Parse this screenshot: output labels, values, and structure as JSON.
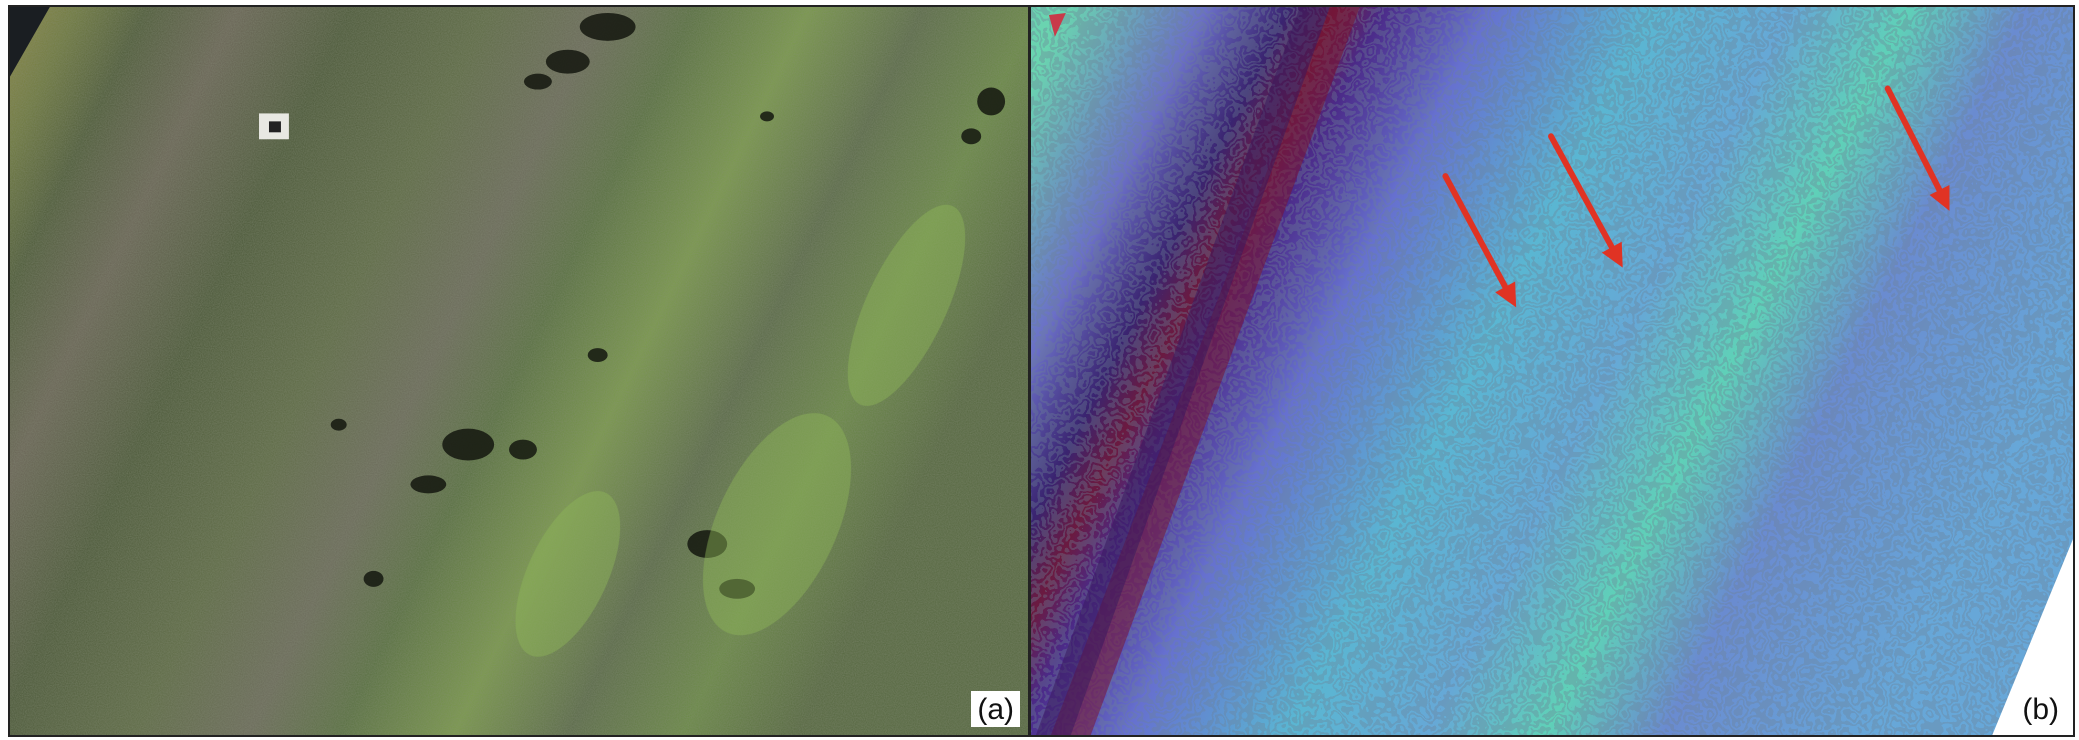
{
  "figure": {
    "panels": [
      {
        "label": "(a)",
        "content": "orthomosaic"
      },
      {
        "label": "(b)",
        "content": "elevation-contour-map"
      }
    ],
    "colors": {
      "vegetation_dark": "#3c4a31",
      "vegetation_light": "#7fa24f",
      "soil": "#8a7c6e",
      "elevation_low": "#5a1a3a",
      "elevation_mid": "#6f67c9",
      "elevation_high": "#5fd2b8",
      "arrow": "#e03324",
      "label_background": "#ffffff"
    },
    "arrow_count": 3
  }
}
